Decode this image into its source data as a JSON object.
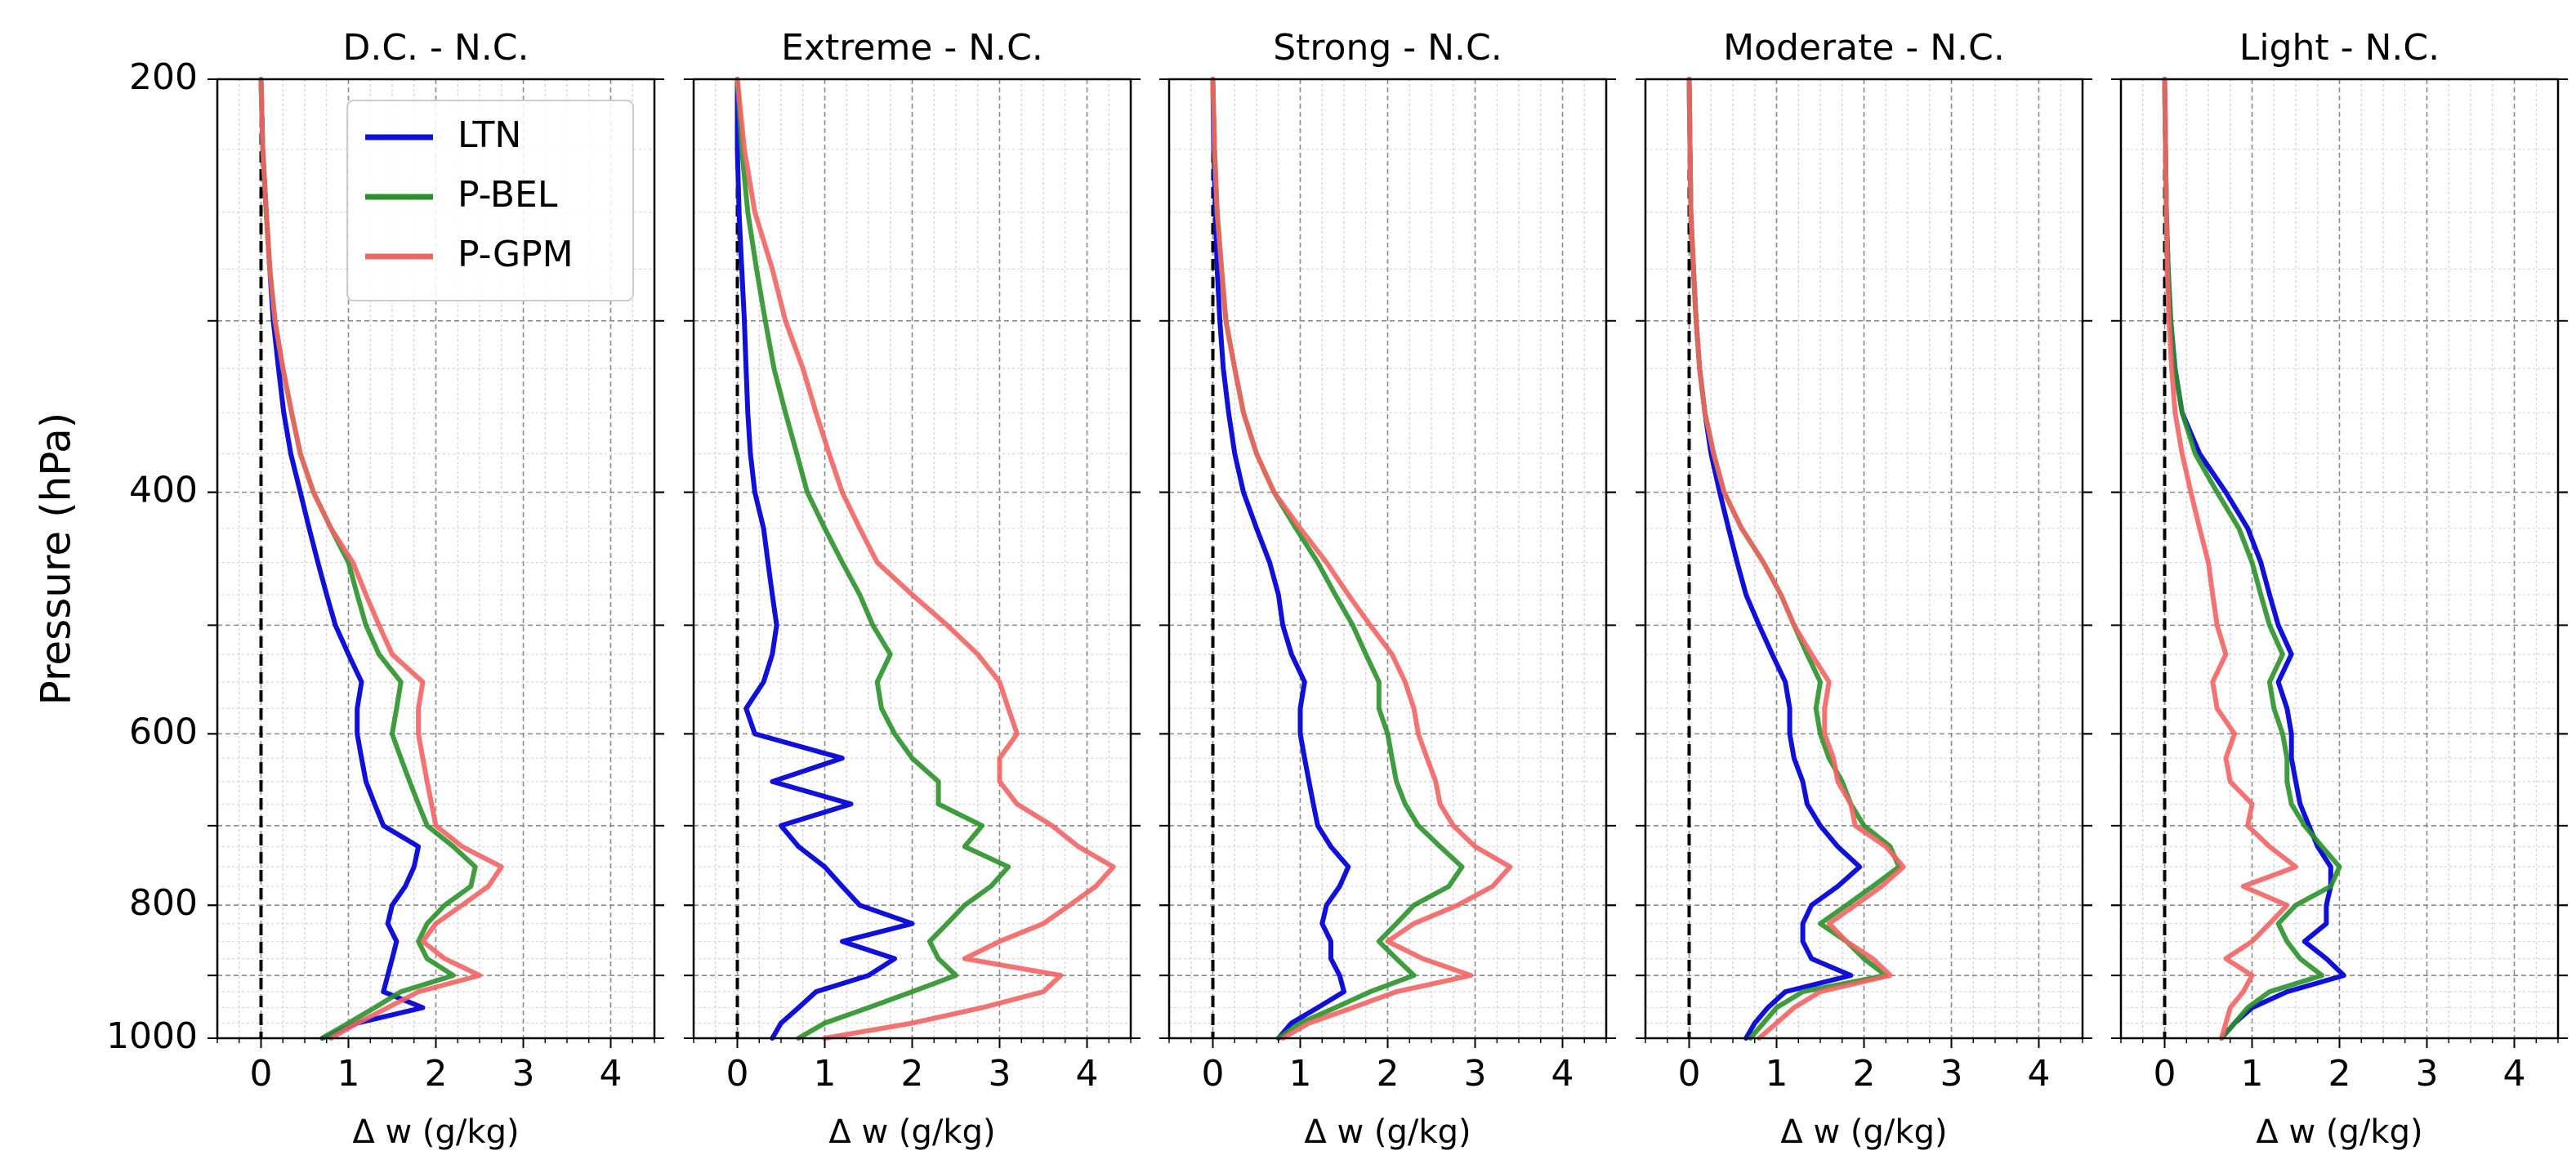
{
  "chart_data": {
    "type": "line",
    "ylabel": "Pressure (hPa)",
    "xlabel": "Δ w (g/kg)",
    "xlim": [
      -0.5,
      4.5
    ],
    "ylim": [
      1000,
      200
    ],
    "yscale": "log",
    "xticks": [
      0,
      1,
      2,
      3,
      4
    ],
    "yticks": [
      200,
      400,
      600,
      800,
      1000
    ],
    "grid": true,
    "legend": {
      "location": "upper-right",
      "entries": [
        "LTN",
        "P-BEL",
        "P-GPM"
      ]
    },
    "colors": {
      "LTN": "#1010d8",
      "P-BEL": "#2a912a",
      "P-GPM": "#f26464",
      "zero_line": "#000000"
    },
    "pressure_levels": [
      200,
      225,
      250,
      275,
      300,
      325,
      350,
      375,
      400,
      425,
      450,
      475,
      500,
      525,
      550,
      575,
      600,
      625,
      650,
      675,
      700,
      725,
      750,
      775,
      800,
      825,
      850,
      875,
      900,
      925,
      950,
      975,
      1000
    ],
    "panels": [
      {
        "title": "D.C. - N.C.",
        "series": [
          {
            "name": "LTN",
            "x": [
              0,
              0.02,
              0.06,
              0.1,
              0.14,
              0.2,
              0.26,
              0.34,
              0.45,
              0.55,
              0.65,
              0.75,
              0.85,
              1.0,
              1.15,
              1.1,
              1.1,
              1.15,
              1.2,
              1.3,
              1.4,
              1.8,
              1.75,
              1.65,
              1.5,
              1.45,
              1.55,
              1.5,
              1.45,
              1.4,
              1.85,
              1.1,
              0.7
            ]
          },
          {
            "name": "P-BEL",
            "x": [
              0,
              0.02,
              0.06,
              0.1,
              0.16,
              0.25,
              0.35,
              0.45,
              0.6,
              0.8,
              1.0,
              1.1,
              1.2,
              1.35,
              1.6,
              1.55,
              1.5,
              1.6,
              1.7,
              1.8,
              1.9,
              2.2,
              2.45,
              2.4,
              2.1,
              1.9,
              1.8,
              1.9,
              2.2,
              1.6,
              1.3,
              1.0,
              0.7
            ]
          },
          {
            "name": "P-GPM",
            "x": [
              0,
              0.02,
              0.06,
              0.1,
              0.16,
              0.25,
              0.35,
              0.45,
              0.6,
              0.8,
              1.05,
              1.2,
              1.35,
              1.5,
              1.85,
              1.8,
              1.8,
              1.85,
              1.9,
              1.95,
              2.0,
              2.3,
              2.75,
              2.6,
              2.3,
              2.0,
              1.85,
              2.1,
              2.5,
              1.8,
              1.45,
              1.1,
              0.8
            ]
          }
        ]
      },
      {
        "title": "Extreme - N.C.",
        "series": [
          {
            "name": "LTN",
            "x": [
              0,
              0,
              0.02,
              0.05,
              0.08,
              0.1,
              0.12,
              0.15,
              0.2,
              0.3,
              0.35,
              0.4,
              0.45,
              0.4,
              0.3,
              0.1,
              0.2,
              1.2,
              0.4,
              1.3,
              0.5,
              0.7,
              1.0,
              1.2,
              1.4,
              2.0,
              1.2,
              1.8,
              1.5,
              0.9,
              0.7,
              0.5,
              0.4
            ]
          },
          {
            "name": "P-BEL",
            "x": [
              0,
              0.05,
              0.12,
              0.22,
              0.32,
              0.42,
              0.55,
              0.68,
              0.8,
              1.0,
              1.2,
              1.4,
              1.55,
              1.75,
              1.6,
              1.65,
              1.8,
              2.0,
              2.3,
              2.3,
              2.8,
              2.6,
              3.1,
              2.9,
              2.6,
              2.4,
              2.2,
              2.3,
              2.5,
              2.0,
              1.5,
              1.0,
              0.7
            ]
          },
          {
            "name": "P-GPM",
            "x": [
              0,
              0.08,
              0.2,
              0.4,
              0.55,
              0.75,
              0.9,
              1.05,
              1.2,
              1.4,
              1.6,
              2.0,
              2.4,
              2.75,
              3.0,
              3.1,
              3.2,
              3.0,
              3.0,
              3.2,
              3.6,
              3.9,
              4.3,
              4.1,
              3.8,
              3.5,
              3.0,
              2.6,
              3.7,
              3.5,
              2.8,
              2.0,
              1.0
            ]
          }
        ]
      },
      {
        "title": "Strong - N.C.",
        "series": [
          {
            "name": "LTN",
            "x": [
              0,
              0.01,
              0.03,
              0.05,
              0.08,
              0.12,
              0.18,
              0.25,
              0.35,
              0.5,
              0.65,
              0.75,
              0.8,
              0.9,
              1.05,
              1.0,
              1.0,
              1.05,
              1.1,
              1.15,
              1.2,
              1.35,
              1.55,
              1.45,
              1.3,
              1.25,
              1.35,
              1.35,
              1.45,
              1.5,
              1.2,
              0.9,
              0.75
            ]
          },
          {
            "name": "P-BEL",
            "x": [
              0,
              0.02,
              0.05,
              0.1,
              0.15,
              0.25,
              0.35,
              0.5,
              0.7,
              0.95,
              1.2,
              1.4,
              1.6,
              1.75,
              1.9,
              1.9,
              2.0,
              2.05,
              2.1,
              2.2,
              2.35,
              2.6,
              2.85,
              2.7,
              2.3,
              2.1,
              1.9,
              2.1,
              2.3,
              1.8,
              1.4,
              1.0,
              0.75
            ]
          },
          {
            "name": "P-GPM",
            "x": [
              0,
              0.02,
              0.05,
              0.1,
              0.15,
              0.25,
              0.35,
              0.5,
              0.7,
              1.0,
              1.3,
              1.55,
              1.8,
              2.05,
              2.2,
              2.3,
              2.35,
              2.45,
              2.55,
              2.6,
              2.75,
              3.0,
              3.4,
              3.2,
              2.8,
              2.3,
              2.0,
              2.4,
              2.95,
              2.1,
              1.6,
              1.1,
              0.8
            ]
          }
        ]
      },
      {
        "title": "Moderate - N.C.",
        "series": [
          {
            "name": "LTN",
            "x": [
              0,
              0.01,
              0.02,
              0.05,
              0.08,
              0.12,
              0.18,
              0.25,
              0.35,
              0.45,
              0.55,
              0.65,
              0.8,
              0.95,
              1.1,
              1.15,
              1.15,
              1.2,
              1.3,
              1.35,
              1.5,
              1.7,
              1.95,
              1.7,
              1.4,
              1.3,
              1.3,
              1.4,
              1.85,
              1.1,
              0.9,
              0.75,
              0.65
            ]
          },
          {
            "name": "P-BEL",
            "x": [
              0,
              0.01,
              0.02,
              0.05,
              0.08,
              0.12,
              0.18,
              0.28,
              0.4,
              0.6,
              0.85,
              1.05,
              1.2,
              1.35,
              1.5,
              1.45,
              1.5,
              1.6,
              1.75,
              1.85,
              2.0,
              2.3,
              2.4,
              2.1,
              1.8,
              1.5,
              1.8,
              2.0,
              2.25,
              1.3,
              1.0,
              0.85,
              0.7
            ]
          },
          {
            "name": "P-GPM",
            "x": [
              0,
              0.01,
              0.02,
              0.05,
              0.08,
              0.12,
              0.18,
              0.28,
              0.4,
              0.6,
              0.85,
              1.05,
              1.2,
              1.4,
              1.6,
              1.55,
              1.55,
              1.65,
              1.7,
              1.85,
              1.9,
              2.25,
              2.45,
              2.2,
              1.9,
              1.6,
              1.8,
              2.1,
              2.3,
              1.5,
              1.2,
              1.0,
              0.8
            ]
          }
        ]
      },
      {
        "title": "Light - N.C.",
        "series": [
          {
            "name": "LTN",
            "x": [
              0,
              0.01,
              0.02,
              0.04,
              0.07,
              0.12,
              0.2,
              0.4,
              0.7,
              0.95,
              1.1,
              1.2,
              1.3,
              1.45,
              1.3,
              1.4,
              1.45,
              1.45,
              1.5,
              1.55,
              1.65,
              1.75,
              1.9,
              1.9,
              1.85,
              1.85,
              1.6,
              1.85,
              2.05,
              1.4,
              1.0,
              0.8,
              0.65
            ]
          },
          {
            "name": "P-BEL",
            "x": [
              0,
              0.01,
              0.02,
              0.04,
              0.07,
              0.12,
              0.2,
              0.35,
              0.6,
              0.85,
              1.0,
              1.1,
              1.2,
              1.35,
              1.2,
              1.25,
              1.35,
              1.4,
              1.4,
              1.45,
              1.6,
              1.8,
              2.0,
              1.9,
              1.5,
              1.3,
              1.4,
              1.55,
              1.8,
              1.2,
              0.95,
              0.8,
              0.65
            ]
          },
          {
            "name": "P-GPM",
            "x": [
              0,
              0.01,
              0.02,
              0.03,
              0.05,
              0.08,
              0.12,
              0.2,
              0.3,
              0.4,
              0.5,
              0.55,
              0.6,
              0.7,
              0.55,
              0.6,
              0.8,
              0.7,
              0.75,
              1.0,
              0.95,
              1.2,
              1.5,
              0.9,
              1.4,
              1.2,
              1.0,
              0.7,
              1.0,
              0.9,
              0.75,
              0.7,
              0.65
            ]
          }
        ]
      }
    ]
  }
}
